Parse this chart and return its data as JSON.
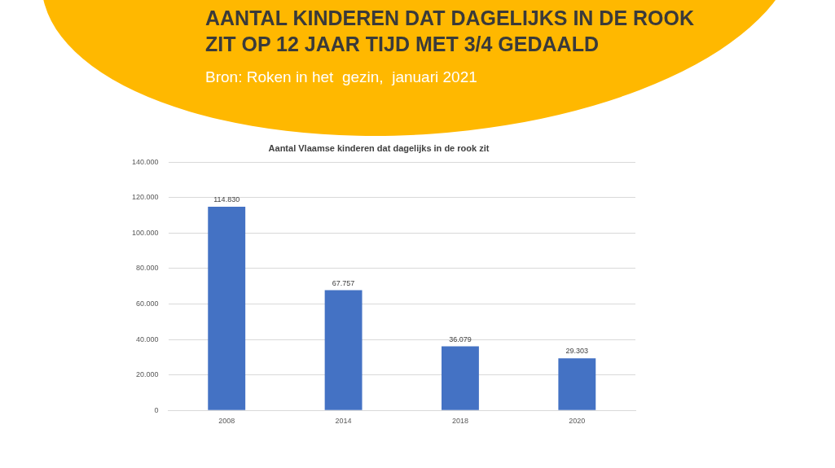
{
  "chart_data": {
    "type": "bar",
    "title": "AANTAL KINDEREN DAT DAGELIJKS IN DE ROOK ZIT OP 12 JAAR TIJD MET 3/4 GEDAALD",
    "subtitle": "Aantal Vlaamse kinderen dat dagelijks in de rook zit",
    "annotations": [
      "Bron: Roken in het  gezin,  januari 2021"
    ],
    "categories": [
      "2008",
      "2014",
      "2018",
      "2020"
    ],
    "values": [
      114830,
      67757,
      36079,
      29303
    ],
    "value_labels": [
      "114.830",
      "67.757",
      "36.079",
      "29.303"
    ],
    "color": "#4472c4",
    "ylim": [
      0,
      140000
    ],
    "yticks": [
      0,
      {
        "value": 20000,
        "label": "20.000"
      },
      {
        "value": 40000,
        "label": "40.000"
      },
      {
        "value": 60000,
        "label": "60.000"
      },
      {
        "value": 80000,
        "label": "80.000"
      },
      {
        "value": 100000,
        "label": "100.000"
      },
      {
        "value": 120000,
        "label": "120.000"
      },
      {
        "value": 140000,
        "label": "140.000"
      }
    ],
    "grid": "y",
    "legend": false
  }
}
